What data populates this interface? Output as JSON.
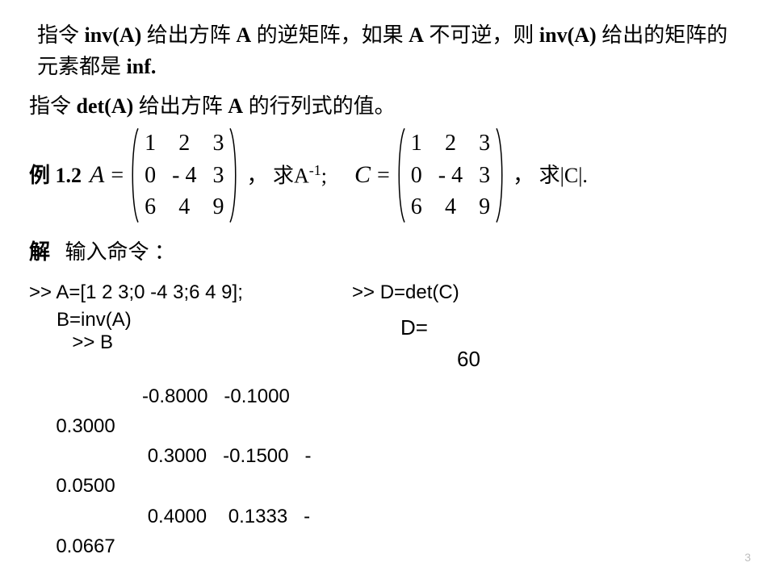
{
  "paragraph1_a": "指令 ",
  "paragraph1_b": "inv(A)",
  "paragraph1_c": " 给出方阵 ",
  "paragraph1_d": "A",
  "paragraph1_e": " 的逆矩阵，如果 ",
  "paragraph1_f": "A",
  "paragraph1_g": " 不可逆，则 ",
  "paragraph1_h": "inv(A)",
  "paragraph1_i": " 给出的矩阵的元素都是 ",
  "paragraph1_j": "inf.",
  "paragraph2_a": "指令 ",
  "paragraph2_b": "det(A)",
  "paragraph2_c": " 给出方阵 ",
  "paragraph2_d": "A",
  "paragraph2_e": " 的行列式的值。",
  "example_label": "例 1.2",
  "varA": "A",
  "eq_sign": "=",
  "matrixA": [
    "1",
    "2",
    "3",
    "0",
    "- 4",
    "3",
    "6",
    "4",
    "9"
  ],
  "after_A_a": "，  求A",
  "after_A_sup": "-1",
  "after_A_b": ";",
  "varC": "C",
  "matrixC": [
    "1",
    "2",
    "3",
    "0",
    "- 4",
    "3",
    "6",
    "4",
    "9"
  ],
  "after_C_a": "，  求",
  "after_C_bar1": "|",
  "after_C_mid": "C",
  "after_C_bar2": "|",
  "after_C_b": ".",
  "sol_label": "解",
  "sol_text": "输入命令 ：",
  "cmd1": ">> A=[1 2 3;0 -4 3;6 4 9];",
  "cmd2_a": ">> B",
  "cmd2_b": "B=inv(A)",
  "cmd3": ">> D=det(C)",
  "out_rows": [
    "                  -0.8000   -0.1000",
    "  0.3000",
    "                   0.3000   -0.1500   -",
    "  0.0500",
    "                   0.4000    0.1333   -",
    "  0.0667"
  ],
  "d_label": "D=",
  "d_value": "60",
  "page_number": "3"
}
